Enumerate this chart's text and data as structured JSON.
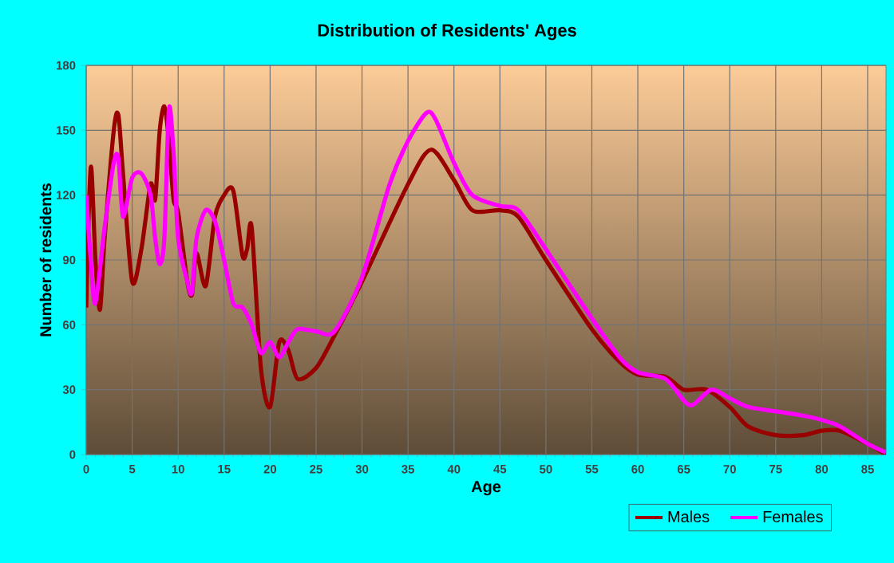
{
  "chart_data": {
    "type": "line",
    "title": "Distribution of Residents' Ages",
    "xlabel": "Age",
    "ylabel": "Number of residents",
    "xlim": [
      0,
      87
    ],
    "ylim": [
      0,
      180
    ],
    "xticks": [
      0,
      5,
      10,
      15,
      20,
      25,
      30,
      35,
      40,
      45,
      50,
      55,
      60,
      65,
      70,
      75,
      80,
      85
    ],
    "yticks": [
      0,
      30,
      60,
      90,
      120,
      150,
      180
    ],
    "grid": true,
    "legend": "bottom right",
    "series": [
      {
        "name": "Males",
        "color": "#990000",
        "x": [
          0,
          0.5,
          1,
          1.5,
          2,
          3,
          3.5,
          4,
          5,
          6,
          7,
          7.5,
          8,
          8.5,
          9,
          9.5,
          10,
          11,
          11.5,
          12,
          13,
          14,
          15,
          16,
          17,
          17.5,
          18,
          19,
          20,
          21,
          22,
          23,
          25,
          27,
          30,
          35,
          37.5,
          40,
          42,
          45,
          47,
          50,
          55,
          58,
          60,
          63,
          65,
          67.5,
          70,
          72,
          75,
          78,
          80,
          82,
          85,
          87
        ],
        "values": [
          68,
          133,
          90,
          67,
          100,
          150,
          157,
          130,
          80,
          95,
          125,
          118,
          150,
          161,
          145,
          118,
          112,
          80,
          74,
          93,
          78,
          110,
          120,
          122,
          92,
          95,
          105,
          40,
          22,
          52,
          48,
          35,
          40,
          55,
          80,
          125,
          141,
          127,
          113,
          113,
          110,
          90,
          58,
          43,
          37,
          36,
          30,
          30,
          22,
          13,
          9,
          9,
          11,
          11,
          5,
          0
        ]
      },
      {
        "name": "Females",
        "color": "#ff00ff",
        "x": [
          0,
          0.5,
          1,
          2,
          3,
          3.5,
          4,
          5,
          6,
          7,
          7.5,
          8,
          8.5,
          9,
          9.5,
          10,
          11,
          11.5,
          12,
          13,
          14,
          15,
          16,
          17,
          18,
          19,
          20,
          21,
          22,
          23,
          25,
          27,
          30,
          33,
          35,
          37,
          38,
          40,
          42,
          45,
          47,
          50,
          55,
          58,
          60,
          63,
          65,
          66,
          68,
          70,
          72,
          75,
          78,
          80,
          82,
          85,
          87
        ],
        "values": [
          120,
          90,
          70,
          105,
          135,
          137,
          110,
          128,
          130,
          120,
          100,
          88,
          100,
          160,
          140,
          100,
          80,
          75,
          100,
          113,
          108,
          90,
          70,
          68,
          60,
          47,
          52,
          45,
          52,
          58,
          57,
          57,
          82,
          125,
          145,
          158,
          155,
          135,
          120,
          115,
          113,
          95,
          63,
          45,
          38,
          35,
          25,
          23,
          30,
          26,
          22,
          20,
          18,
          16,
          13,
          5,
          1
        ]
      }
    ]
  }
}
